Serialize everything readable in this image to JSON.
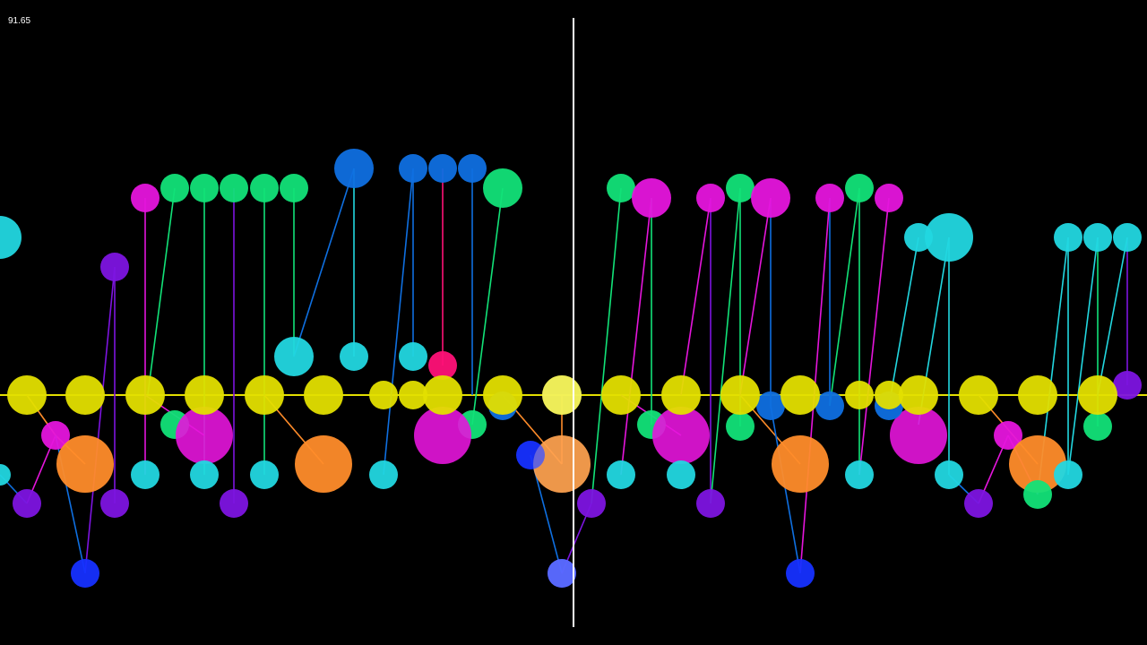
{
  "counter": "91.65",
  "colors": {
    "background": "#000000",
    "playhead": "#ffffff",
    "yellow": "#e3df00",
    "orange": "#ff8c2a",
    "cyan": "#22d7e0",
    "green": "#12e278",
    "magenta": "#e515dc",
    "violet": "#7d14e0",
    "blue": "#0f6fe0",
    "deep_blue": "#1630ff",
    "crimson": "#ff1177"
  }
}
